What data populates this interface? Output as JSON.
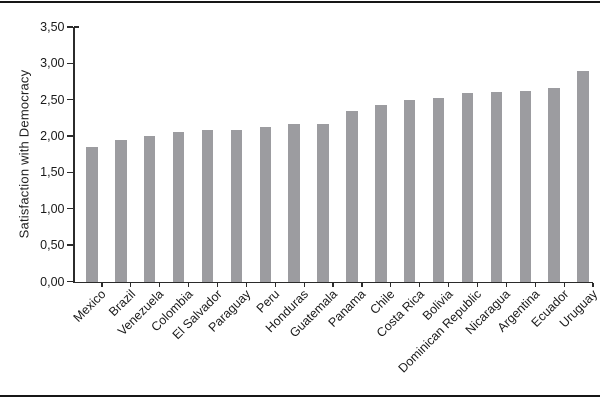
{
  "chart_data": {
    "type": "bar",
    "title": "",
    "xlabel": "",
    "ylabel": "Satisfaction with Democracy",
    "categories": [
      "Mexico",
      "Brazil",
      "Venezuela",
      "Colombia",
      "El Salvador",
      "Paraguay",
      "Peru",
      "Honduras",
      "Guatemala",
      "Panama",
      "Chile",
      "Costa Rica",
      "Bolivia",
      "Dominican Republic",
      "Nicaragua",
      "Argentina",
      "Ecuador",
      "Uruguay"
    ],
    "values": [
      1.85,
      1.94,
      2.0,
      2.06,
      2.08,
      2.09,
      2.13,
      2.16,
      2.16,
      2.34,
      2.43,
      2.49,
      2.53,
      2.59,
      2.61,
      2.62,
      2.66,
      2.89
    ],
    "ylim": [
      0,
      3.5
    ],
    "ytick_step": 0.5,
    "ytick_labels": [
      "0,00",
      "0,50",
      "1,00",
      "1,50",
      "2,00",
      "2,50",
      "3,00",
      "3,50"
    ],
    "decimal_separator": ",",
    "grid": false,
    "legend": "none",
    "bar_color": "#9c9ca0",
    "axis_color": "#2b2b2b",
    "text_color": "#1a1a1a",
    "x_labels_rotation_deg": 45
  }
}
